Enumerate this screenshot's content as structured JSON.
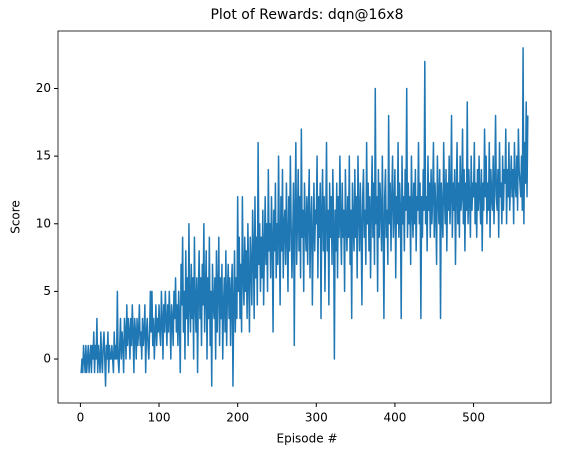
{
  "chart_data": {
    "type": "line",
    "title": "Plot of Rewards: dqn@16x8",
    "x_label": "Episode #",
    "y_label": "Score",
    "color": "#1f77b4",
    "xlim": [
      -28.5,
      598.5
    ],
    "xticks": [
      0,
      100,
      200,
      300,
      400,
      500
    ],
    "ylim": [
      -3.25,
      24.25
    ],
    "yticks": [
      0,
      5,
      10,
      15,
      20
    ],
    "values": [
      -1,
      -1,
      0,
      -1,
      1,
      0,
      -1,
      1,
      -1,
      0,
      1,
      -1,
      0,
      1,
      -1,
      1,
      0,
      2,
      -1,
      1,
      0,
      3,
      -1,
      1,
      0,
      -1,
      2,
      0,
      -1,
      1,
      2,
      0,
      -2,
      1,
      0,
      2,
      -1,
      1,
      0,
      0,
      1,
      0,
      -1,
      2,
      0,
      1,
      0,
      5,
      0,
      -1,
      1,
      3,
      0,
      2,
      1,
      -1,
      3,
      2,
      0,
      4,
      1,
      3,
      2,
      0,
      3,
      1,
      4,
      2,
      -1,
      3,
      2,
      0,
      3,
      1,
      2,
      4,
      1,
      2,
      0,
      3,
      1,
      2,
      4,
      -1,
      2,
      3,
      1,
      0,
      2,
      5,
      2,
      5,
      1,
      3,
      0,
      2,
      4,
      1,
      3,
      2,
      4,
      2,
      1,
      5,
      3,
      0,
      4,
      2,
      5,
      3,
      1,
      4,
      2,
      5,
      3,
      0,
      4,
      3,
      1,
      5,
      3,
      6,
      2,
      4,
      1,
      5,
      3,
      -1,
      7,
      4,
      9,
      2,
      5,
      0,
      8,
      3,
      6,
      1,
      10,
      4,
      2,
      7,
      3,
      6,
      0,
      9,
      4,
      2,
      6,
      -1,
      5,
      8,
      3,
      6,
      1,
      7,
      4,
      10,
      2,
      5,
      8,
      0,
      6,
      3,
      9,
      1,
      5,
      -2,
      7,
      4,
      3,
      6,
      0,
      8,
      2,
      5,
      9,
      1,
      6,
      3,
      7,
      0,
      4,
      6,
      2,
      8,
      1,
      5,
      7,
      3,
      6,
      1,
      5,
      7,
      -2,
      4,
      8,
      2,
      6,
      3,
      12,
      5,
      9,
      3,
      7,
      2,
      12,
      6,
      4,
      9,
      5,
      8,
      3,
      10,
      6,
      2,
      9,
      7,
      4,
      11,
      8,
      3,
      12,
      6,
      9,
      4,
      16,
      7,
      10,
      5,
      9,
      6,
      11,
      4,
      8,
      12,
      7,
      10,
      5,
      14,
      8,
      10,
      6,
      12,
      9,
      2,
      11,
      8,
      13,
      6,
      10,
      7,
      15,
      9,
      4,
      12,
      8,
      14,
      6,
      10,
      11,
      7,
      13,
      9,
      5,
      12,
      8,
      15,
      10,
      6,
      9,
      13,
      1,
      11,
      16,
      7,
      10,
      14,
      8,
      12,
      6,
      17,
      9,
      11,
      5,
      13,
      10,
      8,
      12,
      7,
      11,
      14,
      6,
      10,
      12,
      4,
      9,
      13,
      8,
      11,
      10,
      15,
      6,
      12,
      9,
      13,
      3,
      11,
      14,
      8,
      12,
      5,
      10,
      16,
      8,
      11,
      4,
      13,
      9,
      12,
      7,
      14,
      10,
      0,
      11,
      8,
      13,
      6,
      12,
      9,
      15,
      10,
      7,
      13,
      9,
      11,
      5,
      14,
      10,
      8,
      12,
      9,
      15,
      7,
      11,
      3,
      13,
      10,
      8,
      14,
      9,
      12,
      6,
      15,
      11,
      8,
      13,
      10,
      4,
      12,
      14,
      9,
      11,
      7,
      16,
      10,
      13,
      8,
      12,
      6,
      11,
      15,
      9,
      13,
      7,
      20,
      10,
      12,
      5,
      14,
      9,
      13,
      11,
      8,
      15,
      10,
      3,
      12,
      14,
      9,
      11,
      7,
      18,
      10,
      13,
      8,
      12,
      15,
      9,
      11,
      14,
      6,
      12,
      10,
      16,
      9,
      13,
      11,
      3,
      15,
      10,
      12,
      8,
      14,
      11,
      20,
      9,
      13,
      10,
      12,
      7,
      15,
      11,
      9,
      13,
      10,
      14,
      8,
      12,
      11,
      16,
      10,
      13,
      3,
      12,
      9,
      14,
      11,
      22,
      10,
      12,
      8,
      15,
      11,
      13,
      9,
      14,
      10,
      12,
      16,
      9,
      13,
      11,
      7,
      15,
      12,
      10,
      14,
      3,
      13,
      11,
      9,
      16,
      12,
      10,
      14,
      8,
      13,
      11,
      15,
      10,
      12,
      18,
      9,
      13,
      11,
      14,
      7,
      12,
      16,
      10,
      13,
      9,
      15,
      11,
      12,
      17,
      10,
      14,
      8,
      13,
      11,
      19,
      10,
      14,
      12,
      9,
      15,
      11,
      13,
      12,
      16,
      10,
      13,
      9,
      14,
      11,
      15,
      12,
      10,
      14,
      8,
      13,
      11,
      17,
      12,
      15,
      10,
      13,
      11,
      16,
      9,
      14,
      12,
      11,
      15,
      10,
      13,
      18,
      12,
      11,
      14,
      9,
      16,
      12,
      13,
      10,
      15,
      11,
      14,
      13,
      17,
      10,
      14,
      12,
      16,
      11,
      13,
      15,
      12,
      14,
      10,
      16,
      13,
      12,
      15,
      11,
      17,
      14,
      13,
      12,
      15,
      11,
      23,
      10,
      16,
      13,
      19,
      12,
      18
    ]
  }
}
